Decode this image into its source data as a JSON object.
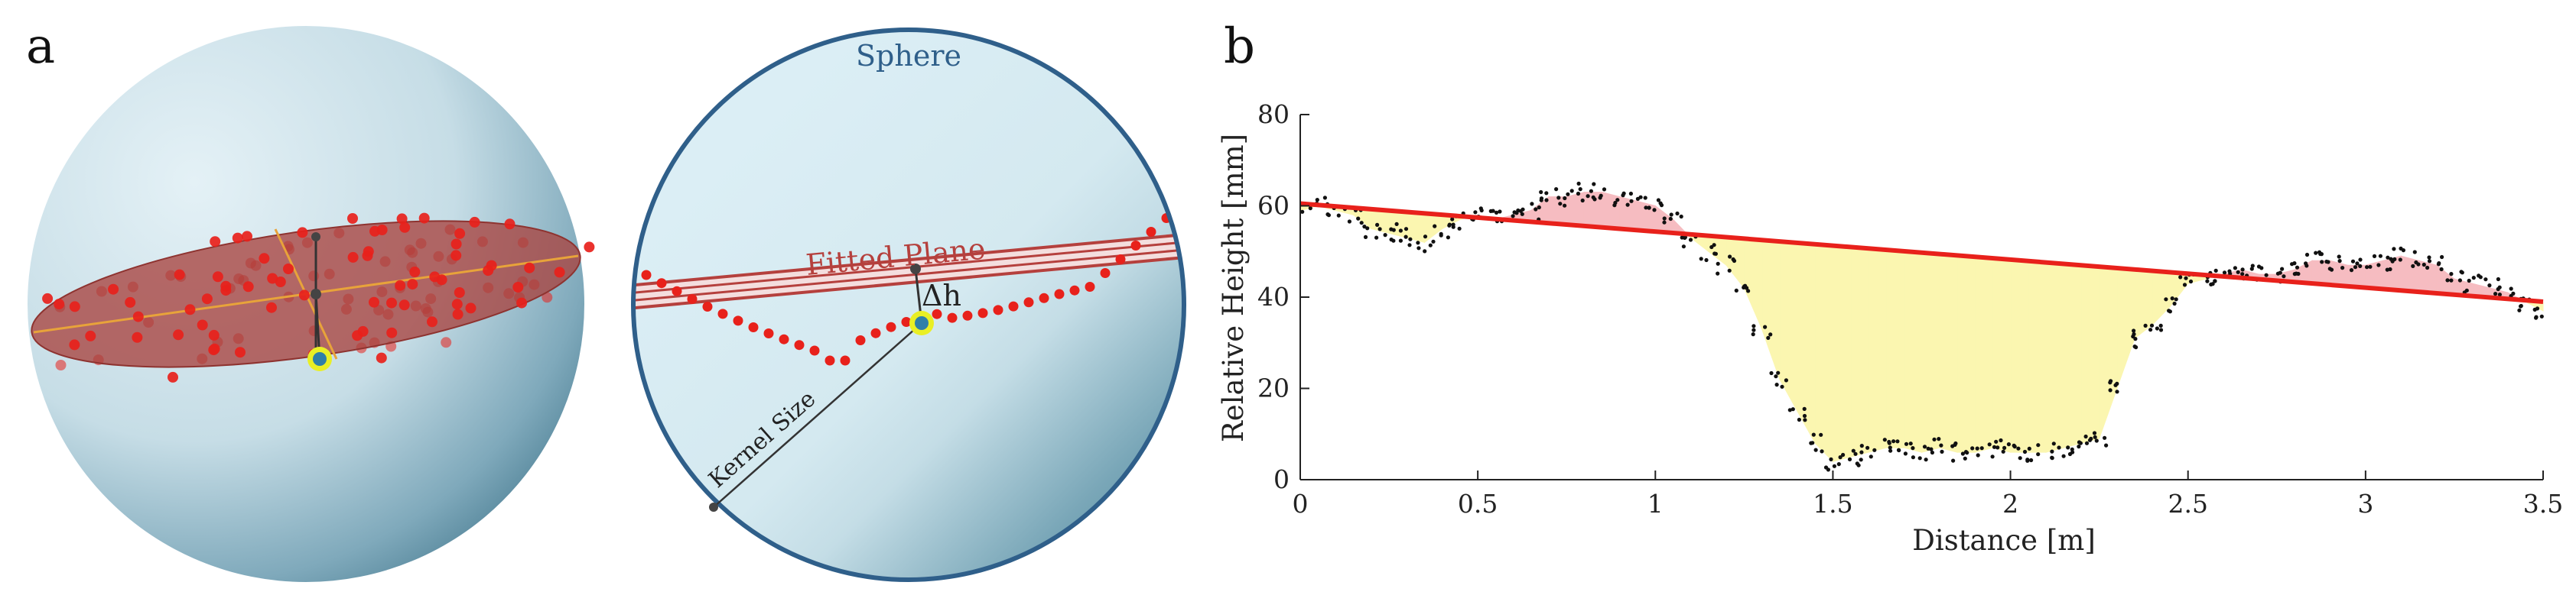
{
  "panels": {
    "a_label": "a",
    "b_label": "b"
  },
  "sphere_diagram": {
    "title": "Sphere",
    "plane_label": "Fitted Plane",
    "delta_label": "Δh",
    "kernel_label": "Kernel Size"
  },
  "colors": {
    "points": "#e8211b",
    "plane": "#a8423f",
    "fit_line": "#e8211b",
    "above_fill": "#f6bcc1",
    "below_fill": "#fbf6b0",
    "sphere_border": "#2f5f8a",
    "highlight_ring": "#e9ef25",
    "highlight_center": "#2f7fa8"
  },
  "chart_data": {
    "type": "scatter",
    "xlabel": "Distance [m]",
    "ylabel": "Relative Height [mm]",
    "xlim": [
      0,
      3.5
    ],
    "ylim": [
      0,
      80
    ],
    "xticks": [
      "0",
      "0.5",
      "1",
      "1.5",
      "2",
      "2.5",
      "3",
      "3.5"
    ],
    "yticks": [
      "0",
      "20",
      "40",
      "60",
      "80"
    ],
    "fit_line": {
      "x": [
        0,
        3.5
      ],
      "y": [
        60.5,
        39
      ]
    },
    "profile": {
      "x": [
        0,
        0.05,
        0.1,
        0.15,
        0.2,
        0.25,
        0.3,
        0.35,
        0.4,
        0.45,
        0.5,
        0.55,
        0.6,
        0.65,
        0.7,
        0.75,
        0.8,
        0.85,
        0.9,
        0.95,
        1.0,
        1.05,
        1.1,
        1.15,
        1.2,
        1.25,
        1.3,
        1.35,
        1.4,
        1.45,
        1.5,
        1.55,
        1.6,
        1.65,
        1.7,
        1.75,
        1.8,
        1.85,
        1.9,
        1.95,
        2.0,
        2.05,
        2.1,
        2.15,
        2.2,
        2.25,
        2.3,
        2.35,
        2.4,
        2.45,
        2.5,
        2.55,
        2.6,
        2.65,
        2.7,
        2.75,
        2.8,
        2.85,
        2.9,
        2.95,
        3.0,
        3.05,
        3.1,
        3.15,
        3.2,
        3.25,
        3.3,
        3.35,
        3.4,
        3.45,
        3.5
      ],
      "y": [
        59,
        60,
        59,
        58,
        55,
        54,
        53,
        52,
        55,
        57,
        58,
        57,
        58,
        59,
        62,
        62,
        63,
        63,
        62,
        61,
        60,
        57,
        53,
        50,
        47,
        42,
        33,
        22,
        15,
        8,
        4,
        5,
        6,
        7,
        7,
        6,
        7,
        6,
        6,
        7,
        6,
        6,
        6,
        7,
        8,
        9,
        20,
        31,
        34,
        38,
        43,
        44,
        45,
        46,
        45,
        45,
        46,
        48,
        48,
        47,
        47,
        48,
        49,
        48,
        47,
        44,
        43,
        42,
        41,
        39,
        37
      ]
    }
  }
}
